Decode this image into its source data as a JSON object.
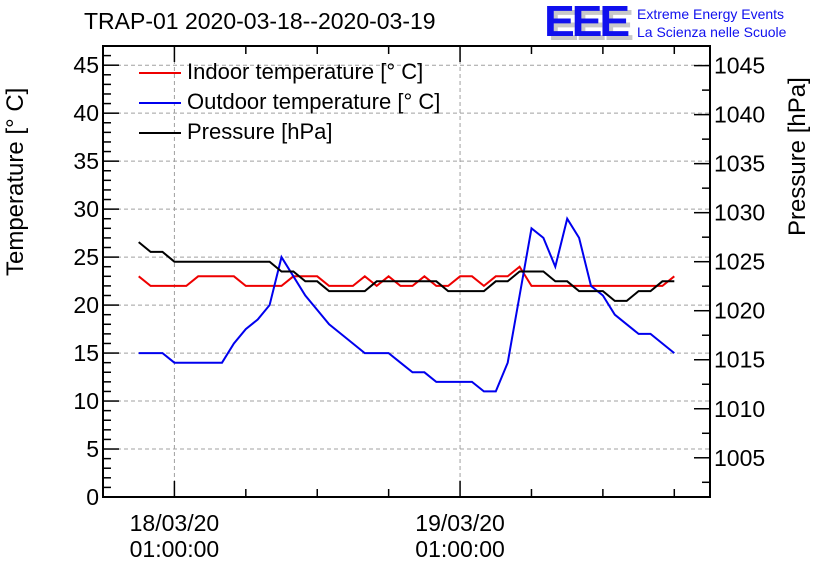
{
  "header": {
    "title": "TRAP-01 2020-03-18--2020-03-19",
    "logo_letters": "EEE",
    "logo_line1": "Extreme Energy Events",
    "logo_line2": "La Scienza nelle Scuole",
    "logo_color": "#1010ee"
  },
  "chart_data": {
    "type": "line",
    "title": "TRAP-01 2020-03-18--2020-03-19",
    "xlabel": "",
    "ylabel": "Temperature [° C]",
    "y2label": "Pressure [hPa]",
    "x_unit": "hours since 18/03/20 01:00:00",
    "x_range": [
      -6,
      45
    ],
    "x_major_ticks": [
      {
        "value": 0,
        "label_line1": "18/03/20",
        "label_line2": "01:00:00"
      },
      {
        "value": 24,
        "label_line1": "19/03/20",
        "label_line2": "01:00:00"
      }
    ],
    "x_minor_tick_step": 6,
    "ylim": [
      0,
      47
    ],
    "y_ticks": [
      0,
      5,
      10,
      15,
      20,
      25,
      30,
      35,
      40,
      45
    ],
    "y2lim": [
      1001,
      1047
    ],
    "y2_ticks": [
      1005,
      1010,
      1015,
      1020,
      1025,
      1030,
      1035,
      1040,
      1045
    ],
    "grid": true,
    "legend_position": "top-left",
    "x": [
      -3,
      -2,
      -1,
      0,
      1,
      2,
      3,
      4,
      5,
      6,
      7,
      8,
      9,
      10,
      11,
      12,
      13,
      14,
      15,
      16,
      17,
      18,
      19,
      20,
      21,
      22,
      23,
      24,
      25,
      26,
      27,
      28,
      29,
      30,
      31,
      32,
      33,
      34,
      35,
      36,
      37,
      38,
      39,
      40,
      41,
      42
    ],
    "series": [
      {
        "name": "Indoor temperature [° C]",
        "axis": "left",
        "color": "#ee0000",
        "values": [
          23,
          22,
          22,
          22,
          22,
          23,
          23,
          23,
          23,
          22,
          22,
          22,
          22,
          23,
          23,
          23,
          22,
          22,
          22,
          23,
          22,
          23,
          22,
          22,
          23,
          22,
          22,
          23,
          23,
          22,
          23,
          23,
          24,
          22,
          22,
          22,
          22,
          22,
          22,
          22,
          22,
          22,
          22,
          22,
          22,
          23
        ]
      },
      {
        "name": "Outdoor temperature [° C]",
        "axis": "left",
        "color": "#0000ee",
        "values": [
          15,
          15,
          15,
          14,
          14,
          14,
          14,
          14,
          16,
          17.5,
          18.5,
          20,
          25,
          23,
          21,
          19.5,
          18,
          17,
          16,
          15,
          15,
          15,
          14,
          13,
          13,
          12,
          12,
          12,
          12,
          11,
          11,
          14,
          21,
          28,
          27,
          24,
          29,
          27,
          22,
          21,
          19,
          18,
          17,
          17,
          16,
          15
        ]
      },
      {
        "name": "Pressure [hPa]",
        "axis": "right",
        "color": "#000000",
        "values": [
          1027,
          1026,
          1026,
          1025,
          1025,
          1025,
          1025,
          1025,
          1025,
          1025,
          1025,
          1025,
          1024,
          1024,
          1023,
          1023,
          1022,
          1022,
          1022,
          1022,
          1023,
          1023,
          1023,
          1023,
          1023,
          1023,
          1022,
          1022,
          1022,
          1022,
          1023,
          1023,
          1024,
          1024,
          1024,
          1023,
          1023,
          1022,
          1022,
          1022,
          1021,
          1021,
          1022,
          1022,
          1023,
          1023
        ]
      }
    ]
  }
}
